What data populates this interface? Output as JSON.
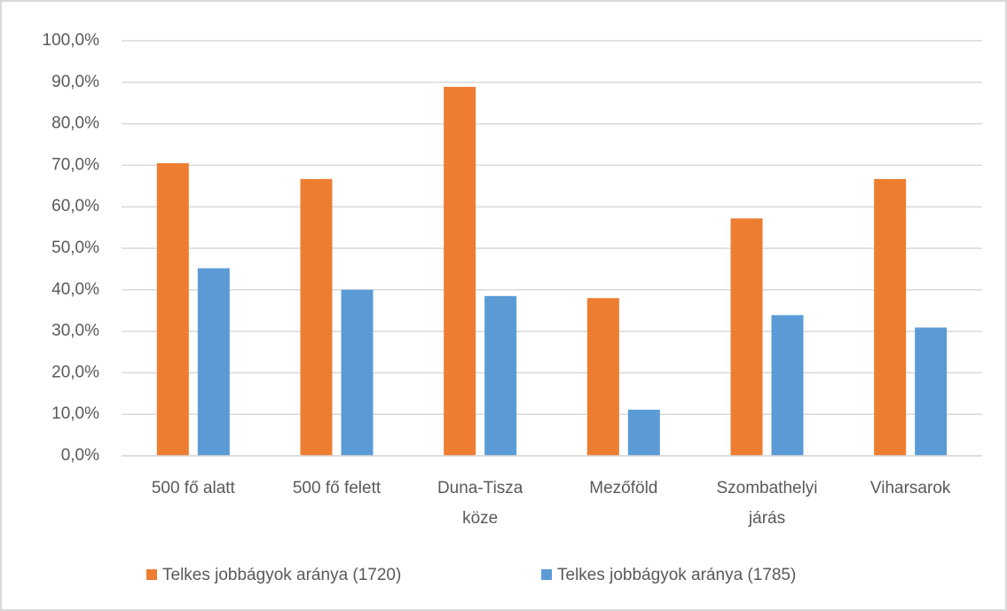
{
  "chart_data": {
    "type": "bar",
    "categories": [
      "500 fő alatt",
      "500 fő felett",
      "Duna-Tisza köze",
      "Mezőföld",
      "Szombathelyi járás",
      "Viharsarok"
    ],
    "series": [
      {
        "name": "Telkes jobbágyok aránya (1720)",
        "color": "#ed7d31",
        "values": [
          70.5,
          66.7,
          88.9,
          38.0,
          57.2,
          66.7
        ]
      },
      {
        "name": "Telkes jobbágyok aránya (1785)",
        "color": "#5b9bd5",
        "values": [
          45.2,
          40.0,
          38.5,
          11.1,
          33.9,
          30.9
        ]
      }
    ],
    "ylim": [
      0,
      100
    ],
    "yticks": [
      {
        "value": 0,
        "label": "0,0%"
      },
      {
        "value": 10,
        "label": "10,0%"
      },
      {
        "value": 20,
        "label": "20,0%"
      },
      {
        "value": 30,
        "label": "30,0%"
      },
      {
        "value": 40,
        "label": "40,0%"
      },
      {
        "value": 50,
        "label": "50,0%"
      },
      {
        "value": 60,
        "label": "60,0%"
      },
      {
        "value": 70,
        "label": "70,0%"
      },
      {
        "value": 80,
        "label": "80,0%"
      },
      {
        "value": 90,
        "label": "90,0%"
      },
      {
        "value": 100,
        "label": "100,0%"
      }
    ],
    "grid": true,
    "legend": "bottom"
  }
}
